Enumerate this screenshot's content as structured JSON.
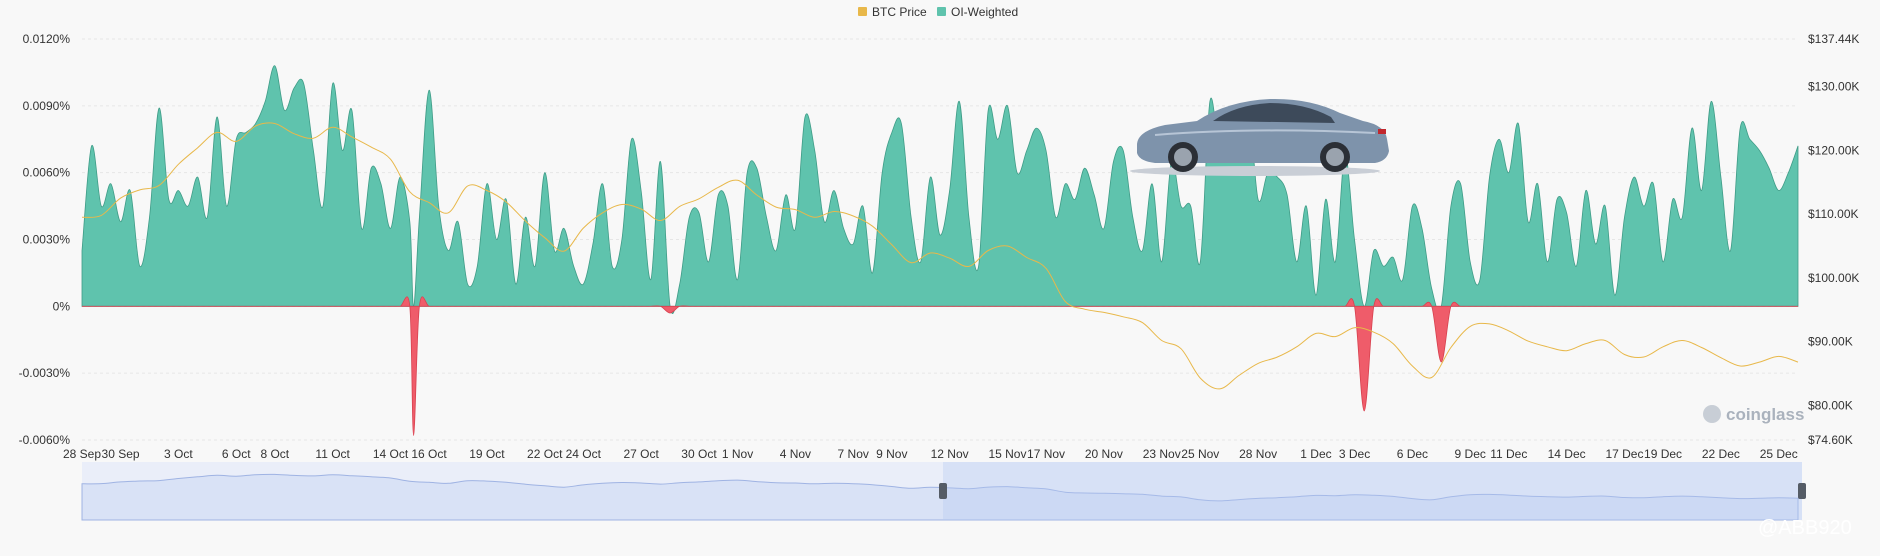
{
  "chart_data": {
    "type": "area",
    "legend": [
      {
        "name": "BTC Price",
        "color": "#e8b84a"
      },
      {
        "name": "OI-Weighted",
        "color": "#5fc3ad"
      }
    ],
    "colors": {
      "positive": "#5fc3ad",
      "negative": "#ef5c6a",
      "price": "#e8b84a",
      "grid": "#e6e6e6",
      "navigator": "#d9e2f6",
      "navigator_line": "#9fb3e3"
    },
    "y_left": {
      "ticks": [
        "0.0120%",
        "0.0090%",
        "0.0060%",
        "0.0030%",
        "0%",
        "-0.0030%",
        "-0.0060%"
      ],
      "range": [
        -0.006,
        0.012
      ]
    },
    "y_right": {
      "ticks": [
        "$137.44K",
        "$130.00K",
        "$120.00K",
        "$110.00K",
        "$100.00K",
        "$90.00K",
        "$80.00K",
        "$74.60K"
      ],
      "range": [
        74.6,
        137.44
      ]
    },
    "x_ticks": [
      "28 Sep",
      "30 Sep",
      "3 Oct",
      "6 Oct",
      "8 Oct",
      "11 Oct",
      "14 Oct",
      "16 Oct",
      "19 Oct",
      "22 Oct",
      "24 Oct",
      "27 Oct",
      "30 Oct",
      "1 Nov",
      "4 Nov",
      "7 Nov",
      "9 Nov",
      "12 Nov",
      "15 Nov",
      "17 Nov",
      "20 Nov",
      "23 Nov",
      "25 Nov",
      "28 Nov",
      "1 Dec",
      "3 Dec",
      "6 Dec",
      "9 Dec",
      "11 Dec",
      "14 Dec",
      "17 Dec",
      "19 Dec",
      "22 Dec",
      "25 Dec"
    ],
    "x_days": [
      0,
      2,
      5,
      8,
      10,
      13,
      16,
      18,
      21,
      24,
      26,
      29,
      32,
      34,
      37,
      40,
      42,
      45,
      48,
      50,
      53,
      56,
      58,
      61,
      64,
      66,
      69,
      72,
      74,
      77,
      80,
      82,
      85,
      88
    ],
    "x_range_days": [
      0,
      89
    ],
    "oi_weighted": [
      [
        0,
        0.0025
      ],
      [
        0.5,
        0.0072
      ],
      [
        1,
        0.0045
      ],
      [
        1.5,
        0.0055
      ],
      [
        2,
        0.0038
      ],
      [
        2.5,
        0.0052
      ],
      [
        3,
        0.0018
      ],
      [
        3.5,
        0.004
      ],
      [
        4,
        0.0089
      ],
      [
        4.5,
        0.0048
      ],
      [
        5,
        0.0052
      ],
      [
        5.5,
        0.0045
      ],
      [
        6,
        0.0058
      ],
      [
        6.5,
        0.004
      ],
      [
        7,
        0.0085
      ],
      [
        7.5,
        0.0045
      ],
      [
        8,
        0.0075
      ],
      [
        8.5,
        0.0078
      ],
      [
        9,
        0.0082
      ],
      [
        9.5,
        0.0092
      ],
      [
        10,
        0.0108
      ],
      [
        10.5,
        0.0088
      ],
      [
        11,
        0.0098
      ],
      [
        11.5,
        0.01
      ],
      [
        12,
        0.007
      ],
      [
        12.5,
        0.0045
      ],
      [
        13,
        0.01
      ],
      [
        13.5,
        0.007
      ],
      [
        14,
        0.0088
      ],
      [
        14.5,
        0.0035
      ],
      [
        15,
        0.0062
      ],
      [
        15.5,
        0.0055
      ],
      [
        16,
        0.0035
      ],
      [
        16.5,
        0.0058
      ],
      [
        17,
        0.0038
      ],
      [
        17.2,
        -0.0058
      ],
      [
        17.5,
        0.004
      ],
      [
        18,
        0.0097
      ],
      [
        18.5,
        0.0045
      ],
      [
        19,
        0.0025
      ],
      [
        19.5,
        0.0038
      ],
      [
        20,
        0.001
      ],
      [
        20.5,
        0.0018
      ],
      [
        21,
        0.0055
      ],
      [
        21.5,
        0.003
      ],
      [
        22,
        0.0048
      ],
      [
        22.5,
        0.001
      ],
      [
        23,
        0.004
      ],
      [
        23.5,
        0.0018
      ],
      [
        24,
        0.006
      ],
      [
        24.5,
        0.0025
      ],
      [
        25,
        0.0035
      ],
      [
        25.5,
        0.0018
      ],
      [
        26,
        0.001
      ],
      [
        26.5,
        0.0028
      ],
      [
        27,
        0.0055
      ],
      [
        27.5,
        0.0018
      ],
      [
        28,
        0.003
      ],
      [
        28.5,
        0.0075
      ],
      [
        29,
        0.0052
      ],
      [
        29.5,
        0.0012
      ],
      [
        30,
        0.0065
      ],
      [
        30.5,
        -0.0003
      ],
      [
        31,
        0.001
      ],
      [
        31.5,
        0.004
      ],
      [
        32,
        0.0042
      ],
      [
        32.5,
        0.002
      ],
      [
        33,
        0.005
      ],
      [
        33.5,
        0.0045
      ],
      [
        34,
        0.0012
      ],
      [
        34.5,
        0.006
      ],
      [
        35,
        0.0062
      ],
      [
        35.5,
        0.004
      ],
      [
        36,
        0.0025
      ],
      [
        36.5,
        0.005
      ],
      [
        37,
        0.0035
      ],
      [
        37.5,
        0.0085
      ],
      [
        38,
        0.007
      ],
      [
        38.5,
        0.0038
      ],
      [
        39,
        0.0052
      ],
      [
        39.5,
        0.0035
      ],
      [
        40,
        0.0028
      ],
      [
        40.5,
        0.0045
      ],
      [
        41,
        0.0015
      ],
      [
        41.5,
        0.006
      ],
      [
        42,
        0.0078
      ],
      [
        42.5,
        0.0082
      ],
      [
        43,
        0.004
      ],
      [
        43.5,
        0.002
      ],
      [
        44,
        0.0058
      ],
      [
        44.5,
        0.0032
      ],
      [
        45,
        0.0052
      ],
      [
        45.5,
        0.0092
      ],
      [
        46,
        0.004
      ],
      [
        46.5,
        0.0018
      ],
      [
        47,
        0.0088
      ],
      [
        47.5,
        0.0075
      ],
      [
        48,
        0.009
      ],
      [
        48.5,
        0.006
      ],
      [
        49,
        0.007
      ],
      [
        49.5,
        0.008
      ],
      [
        50,
        0.007
      ],
      [
        50.5,
        0.004
      ],
      [
        51,
        0.0055
      ],
      [
        51.5,
        0.0048
      ],
      [
        52,
        0.0062
      ],
      [
        52.5,
        0.005
      ],
      [
        53,
        0.0035
      ],
      [
        53.5,
        0.0065
      ],
      [
        54,
        0.007
      ],
      [
        54.5,
        0.004
      ],
      [
        55,
        0.0025
      ],
      [
        55.5,
        0.0055
      ],
      [
        56,
        0.002
      ],
      [
        56.5,
        0.0065
      ],
      [
        57,
        0.0045
      ],
      [
        57.5,
        0.0045
      ],
      [
        58,
        0.002
      ],
      [
        58.5,
        0.0092
      ],
      [
        59,
        0.007
      ],
      [
        59.5,
        0.0082
      ],
      [
        60,
        0.0078
      ],
      [
        60.5,
        0.009
      ],
      [
        61,
        0.0048
      ],
      [
        61.5,
        0.006
      ],
      [
        62,
        0.0058
      ],
      [
        62.5,
        0.005
      ],
      [
        63,
        0.002
      ],
      [
        63.5,
        0.0045
      ],
      [
        64,
        0.0005
      ],
      [
        64.5,
        0.0048
      ],
      [
        65,
        0.002
      ],
      [
        65.5,
        0.0068
      ],
      [
        66,
        0.003
      ],
      [
        66.5,
        -0.0047
      ],
      [
        67,
        0.0025
      ],
      [
        67.5,
        0.0018
      ],
      [
        68,
        0.0022
      ],
      [
        68.5,
        0.0012
      ],
      [
        69,
        0.0045
      ],
      [
        69.5,
        0.0035
      ],
      [
        70,
        0.0008
      ],
      [
        70.5,
        -0.0025
      ],
      [
        71,
        0.0045
      ],
      [
        71.5,
        0.0055
      ],
      [
        72,
        0.002
      ],
      [
        72.5,
        0.0012
      ],
      [
        73,
        0.0058
      ],
      [
        73.5,
        0.0075
      ],
      [
        74,
        0.006
      ],
      [
        74.5,
        0.0082
      ],
      [
        75,
        0.0038
      ],
      [
        75.5,
        0.0055
      ],
      [
        76,
        0.002
      ],
      [
        76.5,
        0.0048
      ],
      [
        77,
        0.0042
      ],
      [
        77.5,
        0.0018
      ],
      [
        78,
        0.0052
      ],
      [
        78.5,
        0.0028
      ],
      [
        79,
        0.0045
      ],
      [
        79.5,
        0.0005
      ],
      [
        80,
        0.004
      ],
      [
        80.5,
        0.0058
      ],
      [
        81,
        0.0045
      ],
      [
        81.5,
        0.0055
      ],
      [
        82,
        0.002
      ],
      [
        82.5,
        0.0048
      ],
      [
        83,
        0.004
      ],
      [
        83.5,
        0.008
      ],
      [
        84,
        0.0052
      ],
      [
        84.5,
        0.0092
      ],
      [
        85,
        0.0058
      ],
      [
        85.5,
        0.0025
      ],
      [
        86,
        0.008
      ],
      [
        86.5,
        0.0075
      ],
      [
        87,
        0.007
      ],
      [
        87.5,
        0.0062
      ],
      [
        88,
        0.0052
      ],
      [
        88.5,
        0.006
      ],
      [
        89,
        0.0072
      ]
    ],
    "btc_price": [
      [
        0,
        109.5
      ],
      [
        1,
        109.8
      ],
      [
        2,
        112.5
      ],
      [
        3,
        113.8
      ],
      [
        4,
        114.5
      ],
      [
        5,
        117.8
      ],
      [
        6,
        120.4
      ],
      [
        7,
        122.8
      ],
      [
        8,
        121.4
      ],
      [
        9,
        123.8
      ],
      [
        10,
        124.2
      ],
      [
        11,
        122.6
      ],
      [
        12,
        121.9
      ],
      [
        13,
        123.6
      ],
      [
        14,
        122.1
      ],
      [
        15,
        120.5
      ],
      [
        16,
        118.6
      ],
      [
        17,
        113.5
      ],
      [
        18,
        111.8
      ],
      [
        19,
        110.2
      ],
      [
        20,
        114.4
      ],
      [
        21,
        113.7
      ],
      [
        22,
        111.9
      ],
      [
        23,
        108.9
      ],
      [
        24,
        106.3
      ],
      [
        25,
        104.2
      ],
      [
        26,
        107.8
      ],
      [
        27,
        110.2
      ],
      [
        28,
        111.5
      ],
      [
        29,
        110.8
      ],
      [
        30,
        109.0
      ],
      [
        31,
        111.2
      ],
      [
        32,
        112.4
      ],
      [
        33,
        114.2
      ],
      [
        34,
        115.3
      ],
      [
        35,
        113.0
      ],
      [
        36,
        111.1
      ],
      [
        37,
        110.7
      ],
      [
        38,
        109.5
      ],
      [
        39,
        110.4
      ],
      [
        40,
        109.7
      ],
      [
        41,
        108.1
      ],
      [
        42,
        105.2
      ],
      [
        43,
        102.4
      ],
      [
        44,
        103.9
      ],
      [
        45,
        103.1
      ],
      [
        46,
        101.8
      ],
      [
        47,
        104.3
      ],
      [
        48,
        105.0
      ],
      [
        49,
        103.2
      ],
      [
        50,
        101.5
      ],
      [
        51,
        96.3
      ],
      [
        52,
        95.1
      ],
      [
        53,
        94.6
      ],
      [
        54,
        93.9
      ],
      [
        55,
        93.0
      ],
      [
        56,
        90.2
      ],
      [
        57,
        88.9
      ],
      [
        58,
        84.3
      ],
      [
        59,
        82.6
      ],
      [
        60,
        84.7
      ],
      [
        61,
        86.6
      ],
      [
        62,
        87.6
      ],
      [
        63,
        89.2
      ],
      [
        64,
        91.3
      ],
      [
        65,
        90.8
      ],
      [
        66,
        92.2
      ],
      [
        67,
        91.5
      ],
      [
        68,
        89.7
      ],
      [
        69,
        86.2
      ],
      [
        70,
        84.4
      ],
      [
        71,
        89.1
      ],
      [
        72,
        92.4
      ],
      [
        73,
        92.8
      ],
      [
        74,
        91.7
      ],
      [
        75,
        90.1
      ],
      [
        76,
        89.2
      ],
      [
        77,
        88.6
      ],
      [
        78,
        89.7
      ],
      [
        79,
        90.2
      ],
      [
        80,
        88.0
      ],
      [
        81,
        87.6
      ],
      [
        82,
        89.2
      ],
      [
        83,
        90.2
      ],
      [
        84,
        89.1
      ],
      [
        85,
        87.5
      ],
      [
        86,
        86.2
      ],
      [
        87,
        86.8
      ],
      [
        88,
        87.7
      ],
      [
        89,
        86.8
      ]
    ]
  },
  "watermark": {
    "brand": "coinglass",
    "handle": "@ABB920"
  }
}
